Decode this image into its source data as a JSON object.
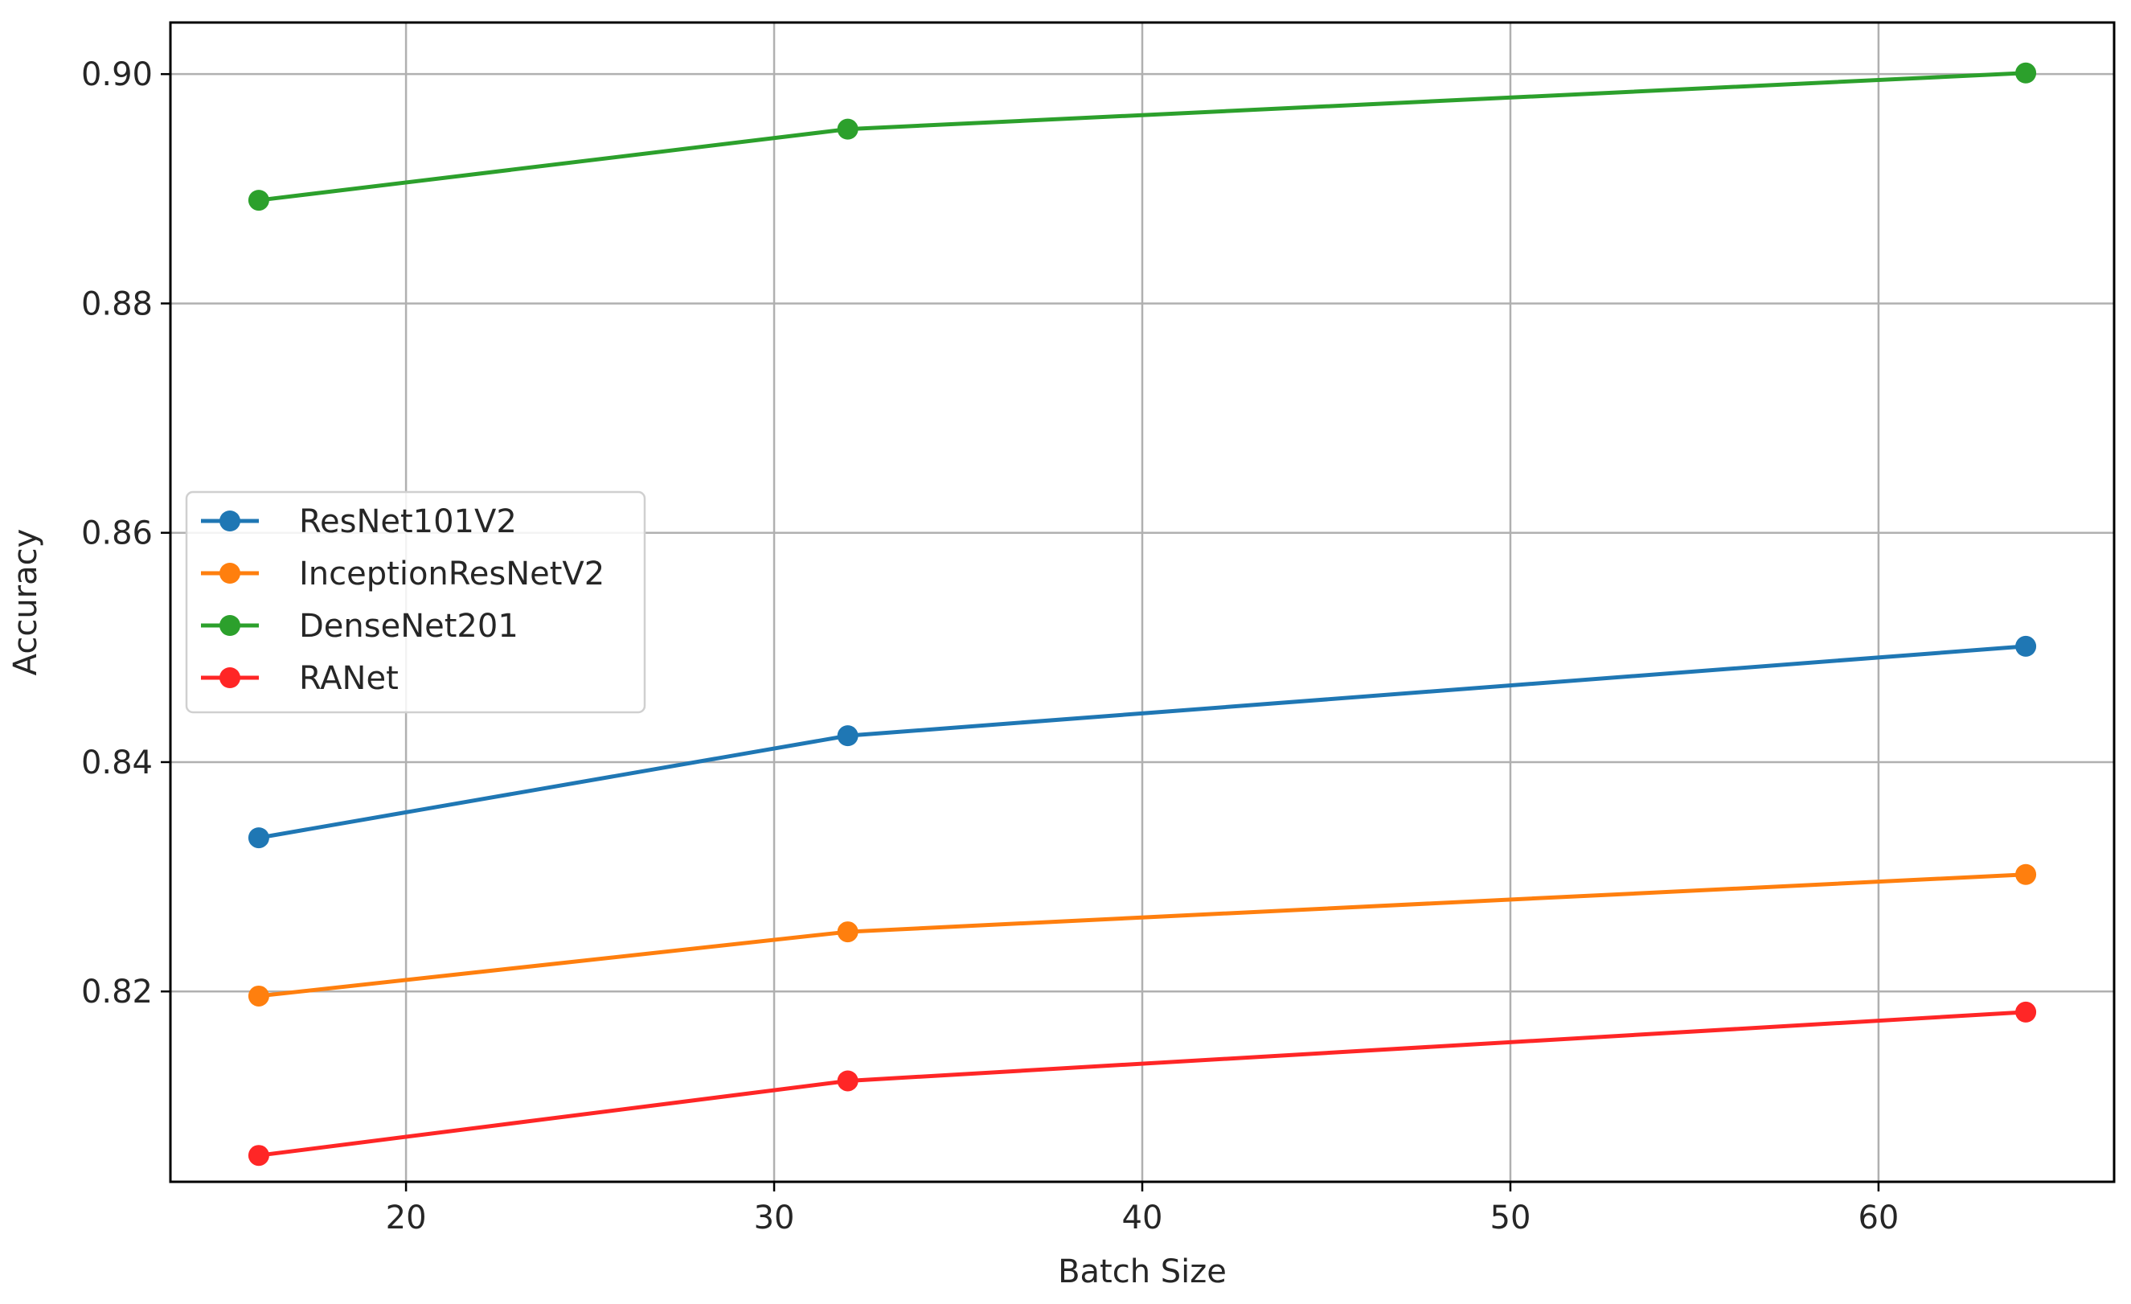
{
  "chart_data": {
    "type": "line",
    "title": "",
    "xlabel": "Batch Size",
    "ylabel": "Accuracy",
    "xlim": [
      13.6,
      66.4
    ],
    "ylim": [
      0.8034,
      0.9045
    ],
    "xticks": [
      "20",
      "30",
      "40",
      "50",
      "60"
    ],
    "xtick_values": [
      20,
      30,
      40,
      50,
      60
    ],
    "yticks": [
      "0.82",
      "0.84",
      "0.86",
      "0.88",
      "0.90"
    ],
    "ytick_values": [
      0.82,
      0.84,
      0.86,
      0.88,
      0.9
    ],
    "grid": true,
    "legend_position": "center-left",
    "x": [
      16,
      32,
      64
    ],
    "series": [
      {
        "name": "ResNet101V2",
        "color": "#1f77b4",
        "values": [
          0.8334,
          0.8423,
          0.8501
        ]
      },
      {
        "name": "InceptionResNetV2",
        "color": "#ff7f0e",
        "values": [
          0.8196,
          0.8252,
          0.8302
        ]
      },
      {
        "name": "DenseNet201",
        "color": "#2ca02c",
        "values": [
          0.889,
          0.8952,
          0.9001
        ]
      },
      {
        "name": "RANet",
        "color": "#ff2626",
        "values": [
          0.8057,
          0.8122,
          0.8182
        ]
      }
    ]
  }
}
